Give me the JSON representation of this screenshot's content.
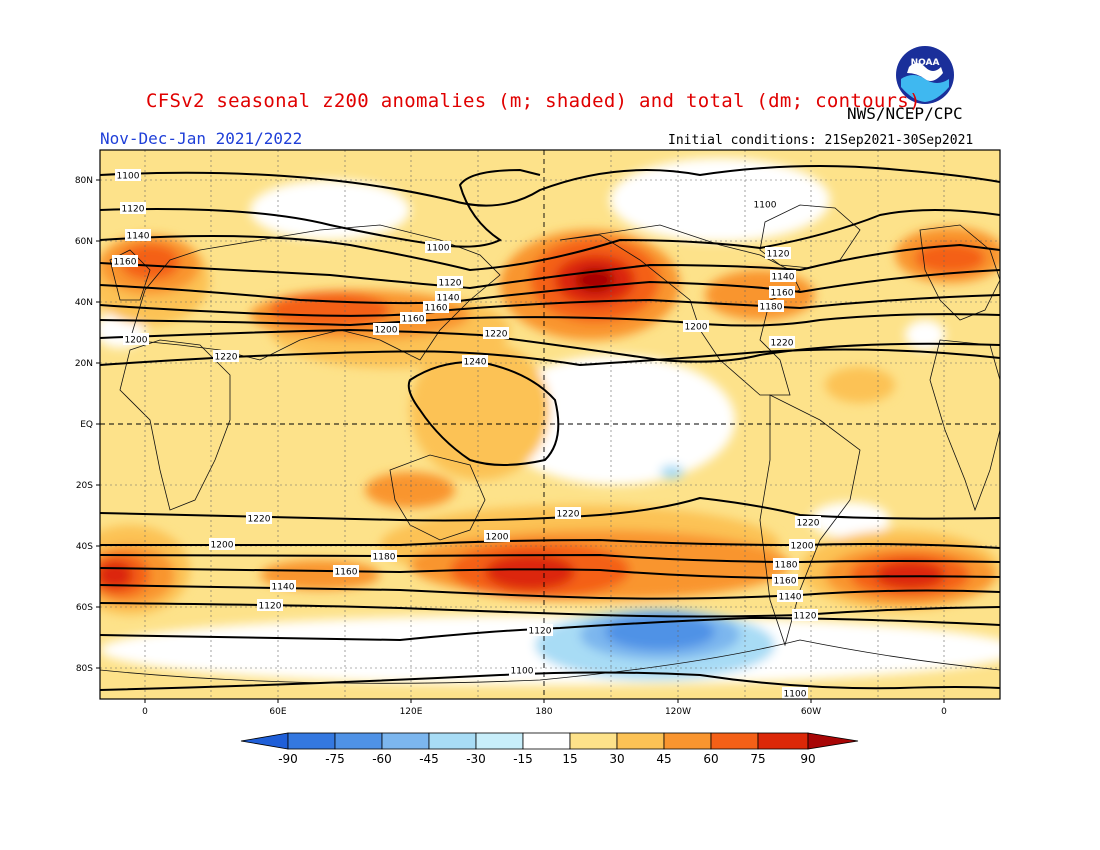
{
  "header": {
    "title": "CFSv2 seasonal z200 anomalies (m; shaded) and total (dm; contours)",
    "agency": "NWS/NCEP/CPC",
    "period": "Nov-Dec-Jan 2021/2022",
    "initial_conditions": "Initial conditions: 21Sep2021-30Sep2021",
    "logo_text": "NOAA"
  },
  "map": {
    "lat_labels": [
      "80N",
      "60N",
      "40N",
      "20N",
      "EQ",
      "20S",
      "40S",
      "60S",
      "80S"
    ],
    "lon_labels": [
      "0",
      "60E",
      "120E",
      "180",
      "120W",
      "60W",
      "0"
    ],
    "contour_labels": [
      {
        "text": "1100"
      },
      {
        "text": "1100"
      },
      {
        "text": "1100"
      },
      {
        "text": "1100"
      },
      {
        "text": "1100"
      },
      {
        "text": "1120"
      },
      {
        "text": "1120"
      },
      {
        "text": "1120"
      },
      {
        "text": "1120"
      },
      {
        "text": "1120"
      },
      {
        "text": "1120"
      },
      {
        "text": "1140"
      },
      {
        "text": "1140"
      },
      {
        "text": "1140"
      },
      {
        "text": "1140"
      },
      {
        "text": "1140"
      },
      {
        "text": "1160"
      },
      {
        "text": "1160"
      },
      {
        "text": "1160"
      },
      {
        "text": "1160"
      },
      {
        "text": "1160"
      },
      {
        "text": "1160"
      },
      {
        "text": "1180"
      },
      {
        "text": "1180"
      },
      {
        "text": "1180"
      },
      {
        "text": "1200"
      },
      {
        "text": "1200"
      },
      {
        "text": "1200"
      },
      {
        "text": "1200"
      },
      {
        "text": "1200"
      },
      {
        "text": "1200"
      },
      {
        "text": "1220"
      },
      {
        "text": "1220"
      },
      {
        "text": "1220"
      },
      {
        "text": "1220"
      },
      {
        "text": "1220"
      },
      {
        "text": "1220"
      },
      {
        "text": "1240"
      }
    ]
  },
  "colorbar": {
    "labels": [
      "-90",
      "-75",
      "-60",
      "-45",
      "-30",
      "-15",
      "15",
      "30",
      "45",
      "60",
      "75",
      "90"
    ],
    "colors": [
      "#1f5fd8",
      "#3478e0",
      "#4f92e6",
      "#7cb6ee",
      "#a8dcf5",
      "#ffffff",
      "#fde28a",
      "#fcc255",
      "#f9952f",
      "#f46017",
      "#dc2808",
      "#a80606"
    ]
  }
}
